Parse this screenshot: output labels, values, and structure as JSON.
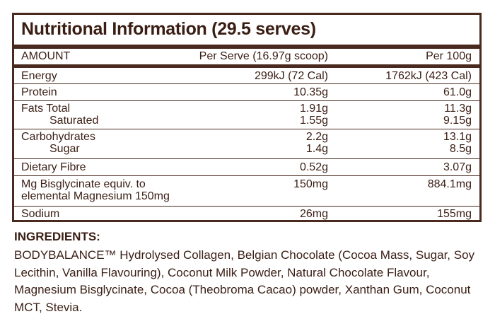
{
  "title": "Nutritional Information (29.5 serves)",
  "columns": {
    "amount": "AMOUNT",
    "per_serve": "Per Serve (16.97g scoop)",
    "per_100g": "Per 100g"
  },
  "rows": [
    {
      "label": "Energy",
      "serve": "299kJ (72 Cal)",
      "per100": "1762kJ (423 Cal)"
    },
    {
      "label": "Protein",
      "serve": "10.35g",
      "per100": "61.0g"
    },
    {
      "label": "Fats Total",
      "serve": "1.91g",
      "per100": "11.3g"
    },
    {
      "label": "Saturated",
      "serve": "1.55g",
      "per100": "9.15g"
    },
    {
      "label": "Carbohydrates",
      "serve": "2.2g",
      "per100": "13.1g"
    },
    {
      "label": "Sugar",
      "serve": "1.4g",
      "per100": "8.5g"
    },
    {
      "label": "Dietary Fibre",
      "serve": "0.52g",
      "per100": "3.07g"
    },
    {
      "label": "Mg Bisglycinate equiv. to",
      "serve": "150mg",
      "per100": "884.1mg"
    },
    {
      "label": "elemental Magnesium 150mg",
      "serve": "",
      "per100": ""
    },
    {
      "label": "Sodium",
      "serve": "26mg",
      "per100": "155mg"
    }
  ],
  "ingredients": {
    "heading": "INGREDIENTS:",
    "text": "BODYBALANCE™ Hydrolysed Collagen, Belgian Chocolate (Cocoa Mass, Sugar, Soy Lecithin, Vanilla Flavouring), Coconut Milk Powder, Natural Chocolate Flavour,  Magnesium Bisglycinate, Cocoa (Theobroma Cacao) powder, Xanthan Gum, Coconut MCT, Stevia."
  },
  "colors": {
    "text": "#3a1e14",
    "border": "#4a2a1e"
  }
}
